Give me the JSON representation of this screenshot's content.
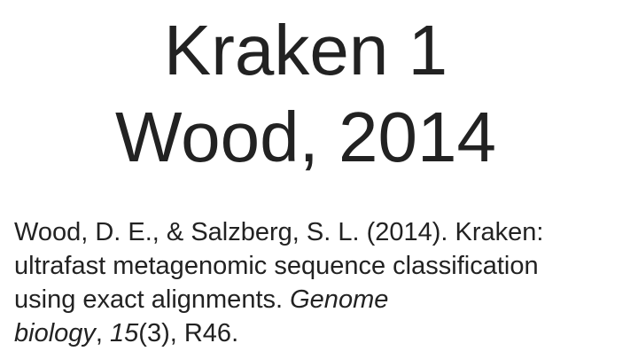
{
  "title": {
    "line1": "Kraken 1",
    "line2": "Wood, 2014"
  },
  "citation": {
    "authors_year": "Wood, D. E., & Salzberg, S. L. (2014). ",
    "article_title_1": "Kraken: ",
    "article_title_2": "ultrafast metagenomic sequence classification",
    "article_title_3": "using exact alignments. ",
    "journal_part1": "Genome",
    "journal_part2": "biology",
    "sep1": ", ",
    "volume": "15",
    "issue": "(3)",
    "pages": ", R46."
  },
  "colors": {
    "text": "#222222",
    "background": "#ffffff"
  }
}
